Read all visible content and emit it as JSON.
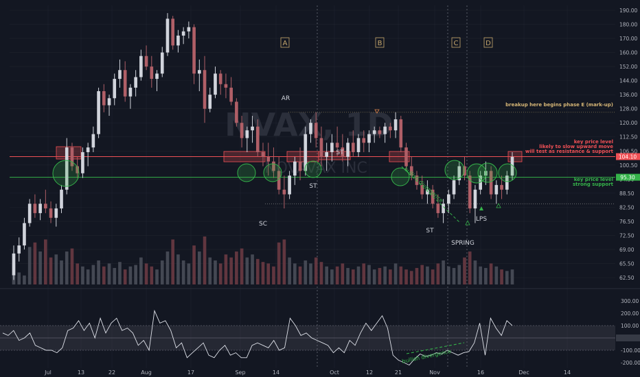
{
  "chart_data": {
    "type": "candlestick",
    "watermark_symbol": "NVAX, 1D",
    "watermark_name": "NOVAVAX INC",
    "y_ticks": [
      190,
      180,
      170,
      160,
      152,
      144,
      136,
      128,
      120,
      112.5,
      106.5,
      100.5,
      94.5,
      88.5,
      82.5,
      76.5,
      72.5,
      69,
      65.5,
      62.5
    ],
    "y_tick_labels": [
      "190.00",
      "180.00",
      "170.00",
      "160.00",
      "152.00",
      "144.00",
      "136.00",
      "128.00",
      "120.00",
      "112.50",
      "106.50",
      "100.50",
      "94.50",
      "88.50",
      "82.50",
      "76.50",
      "72.50",
      "69.00",
      "65.50",
      "62.50"
    ],
    "x_labels": [
      "Jul",
      "13",
      "22",
      "Aug",
      "17",
      "Sep",
      "14",
      "Oct",
      "12",
      "21",
      "Nov",
      "16",
      "Dec",
      "14"
    ],
    "candles": [
      [
        63,
        70,
        62,
        68
      ],
      [
        68,
        72,
        66,
        70
      ],
      [
        70,
        78,
        69,
        76
      ],
      [
        76,
        86,
        75,
        84
      ],
      [
        84,
        88,
        78,
        80
      ],
      [
        80,
        86,
        77,
        84
      ],
      [
        84,
        90,
        80,
        82
      ],
      [
        82,
        85,
        76,
        78
      ],
      [
        78,
        84,
        75,
        82
      ],
      [
        82,
        92,
        80,
        90
      ],
      [
        90,
        112,
        88,
        108
      ],
      [
        108,
        110,
        98,
        100
      ],
      [
        100,
        104,
        95,
        97
      ],
      [
        97,
        108,
        95,
        106
      ],
      [
        106,
        110,
        100,
        108
      ],
      [
        108,
        118,
        106,
        114
      ],
      [
        114,
        140,
        112,
        138
      ],
      [
        138,
        142,
        126,
        130
      ],
      [
        130,
        136,
        124,
        134
      ],
      [
        134,
        148,
        130,
        145
      ],
      [
        145,
        156,
        140,
        150
      ],
      [
        150,
        155,
        132,
        135
      ],
      [
        135,
        142,
        128,
        140
      ],
      [
        140,
        150,
        135,
        146
      ],
      [
        146,
        162,
        144,
        158
      ],
      [
        158,
        165,
        150,
        152
      ],
      [
        152,
        158,
        140,
        145
      ],
      [
        145,
        150,
        138,
        148
      ],
      [
        148,
        164,
        146,
        160
      ],
      [
        160,
        188,
        158,
        184
      ],
      [
        184,
        186,
        162,
        165
      ],
      [
        165,
        176,
        160,
        172
      ],
      [
        172,
        178,
        166,
        175
      ],
      [
        175,
        182,
        170,
        178
      ],
      [
        178,
        180,
        142,
        148
      ],
      [
        148,
        156,
        138,
        150
      ],
      [
        150,
        158,
        120,
        128
      ],
      [
        128,
        140,
        126,
        136
      ],
      [
        136,
        152,
        134,
        148
      ],
      [
        148,
        150,
        136,
        142
      ],
      [
        142,
        148,
        134,
        140
      ],
      [
        140,
        146,
        130,
        132
      ],
      [
        132,
        134,
        118,
        120
      ],
      [
        120,
        124,
        108,
        112
      ],
      [
        112,
        118,
        106,
        116
      ],
      [
        116,
        124,
        110,
        118
      ],
      [
        118,
        122,
        104,
        106
      ],
      [
        106,
        110,
        100,
        104
      ],
      [
        104,
        110,
        96,
        102
      ],
      [
        102,
        108,
        95,
        98
      ],
      [
        98,
        104,
        88,
        90
      ],
      [
        90,
        96,
        82,
        88
      ],
      [
        88,
        98,
        86,
        96
      ],
      [
        96,
        104,
        92,
        102
      ],
      [
        102,
        108,
        94,
        98
      ],
      [
        98,
        118,
        96,
        114
      ],
      [
        114,
        122,
        110,
        120
      ],
      [
        120,
        126,
        108,
        112
      ],
      [
        112,
        118,
        100,
        104
      ],
      [
        104,
        110,
        98,
        106
      ],
      [
        106,
        114,
        102,
        110
      ],
      [
        110,
        118,
        104,
        108
      ],
      [
        108,
        114,
        102,
        104
      ],
      [
        104,
        112,
        100,
        110
      ],
      [
        110,
        116,
        104,
        106
      ],
      [
        106,
        114,
        104,
        112
      ],
      [
        112,
        116,
        106,
        110
      ],
      [
        110,
        116,
        106,
        114
      ],
      [
        114,
        118,
        110,
        116
      ],
      [
        116,
        118,
        112,
        114
      ],
      [
        114,
        120,
        110,
        118
      ],
      [
        118,
        120,
        112,
        116
      ],
      [
        116,
        126,
        112,
        122
      ],
      [
        122,
        124,
        106,
        108
      ],
      [
        108,
        110,
        98,
        100
      ],
      [
        100,
        104,
        94,
        96
      ],
      [
        96,
        98,
        90,
        92
      ],
      [
        92,
        96,
        86,
        88
      ],
      [
        88,
        94,
        84,
        90
      ],
      [
        90,
        92,
        82,
        84
      ],
      [
        84,
        88,
        78,
        80
      ],
      [
        80,
        86,
        76,
        84
      ],
      [
        84,
        90,
        80,
        88
      ],
      [
        88,
        96,
        86,
        94
      ],
      [
        94,
        102,
        92,
        100
      ],
      [
        100,
        104,
        94,
        96
      ],
      [
        96,
        98,
        80,
        82
      ],
      [
        82,
        92,
        76,
        90
      ],
      [
        90,
        98,
        88,
        96
      ],
      [
        96,
        102,
        92,
        98
      ],
      [
        98,
        100,
        86,
        88
      ],
      [
        88,
        94,
        84,
        92
      ],
      [
        92,
        96,
        86,
        90
      ],
      [
        90,
        98,
        88,
        96
      ],
      [
        96,
        106,
        94,
        104
      ]
    ],
    "volume": [
      14,
      8,
      6,
      25,
      28,
      22,
      30,
      18,
      20,
      16,
      22,
      24,
      14,
      12,
      10,
      13,
      16,
      12,
      14,
      11,
      15,
      10,
      12,
      13,
      18,
      14,
      12,
      10,
      16,
      22,
      30,
      20,
      16,
      14,
      26,
      22,
      32,
      18,
      16,
      14,
      20,
      18,
      22,
      24,
      18,
      20,
      17,
      15,
      14,
      12,
      28,
      30,
      18,
      14,
      12,
      16,
      14,
      18,
      15,
      12,
      10,
      12,
      14,
      11,
      10,
      12,
      14,
      13,
      10,
      11,
      12,
      10,
      14,
      12,
      10,
      9,
      11,
      13,
      12,
      10,
      14,
      16,
      12,
      11,
      13,
      18,
      22,
      16,
      12,
      11,
      14,
      12,
      10,
      9,
      10
    ],
    "osc": [
      40,
      20,
      60,
      -20,
      0,
      40,
      -60,
      -80,
      -100,
      -100,
      -120,
      -80,
      60,
      80,
      140,
      60,
      120,
      0,
      160,
      40,
      120,
      160,
      60,
      80,
      40,
      -60,
      -20,
      -100,
      220,
      120,
      140,
      60,
      -80,
      -40,
      -160,
      -120,
      -80,
      -40,
      -140,
      -160,
      -100,
      -60,
      -140,
      -120,
      -160,
      -160,
      -60,
      -40,
      -60,
      -80,
      -20,
      -100,
      -80,
      160,
      100,
      20,
      40,
      0,
      -20,
      -40,
      -60,
      -120,
      -80,
      -120,
      -20,
      -60,
      40,
      120,
      60,
      120,
      180,
      80,
      -140,
      -180,
      -200,
      -220,
      -170,
      -130,
      -150,
      -140,
      -120,
      -130,
      -100,
      -120,
      -140,
      -120,
      -110,
      -40,
      120,
      -140,
      160,
      80,
      20,
      140,
      100
    ],
    "osc_ticks": [
      300,
      200,
      100,
      0,
      -100,
      -200
    ],
    "osc_tick_labels": [
      "300.00",
      "200.00",
      "100.00",
      "0.00",
      "-100.00",
      "-200.00"
    ],
    "price_tags": [
      "104.10",
      "95.30"
    ],
    "phase_letters": [
      "A",
      "B",
      "C",
      "D"
    ],
    "labels": [
      "AR",
      "ST",
      "ST",
      "SC",
      "ST",
      "SPRING",
      "LPS"
    ],
    "annotations": {
      "breakup": "breakup here begins phase E (mark-up)",
      "resistance_1": "key price level",
      "resistance_2": "likely to slow upward move",
      "resistance_3": "will test as resistance & support",
      "support_1": "key price level",
      "support_2": "strong support",
      "bull_div_price": "bullish divergence",
      "bull_div_osc": "bullish divergence"
    },
    "colors": {
      "up": "#d1d4dc",
      "down": "#b05f67",
      "resistance": "#f05055",
      "support": "#35b34a",
      "background": "#131722",
      "grid": "#2a2e39"
    }
  }
}
